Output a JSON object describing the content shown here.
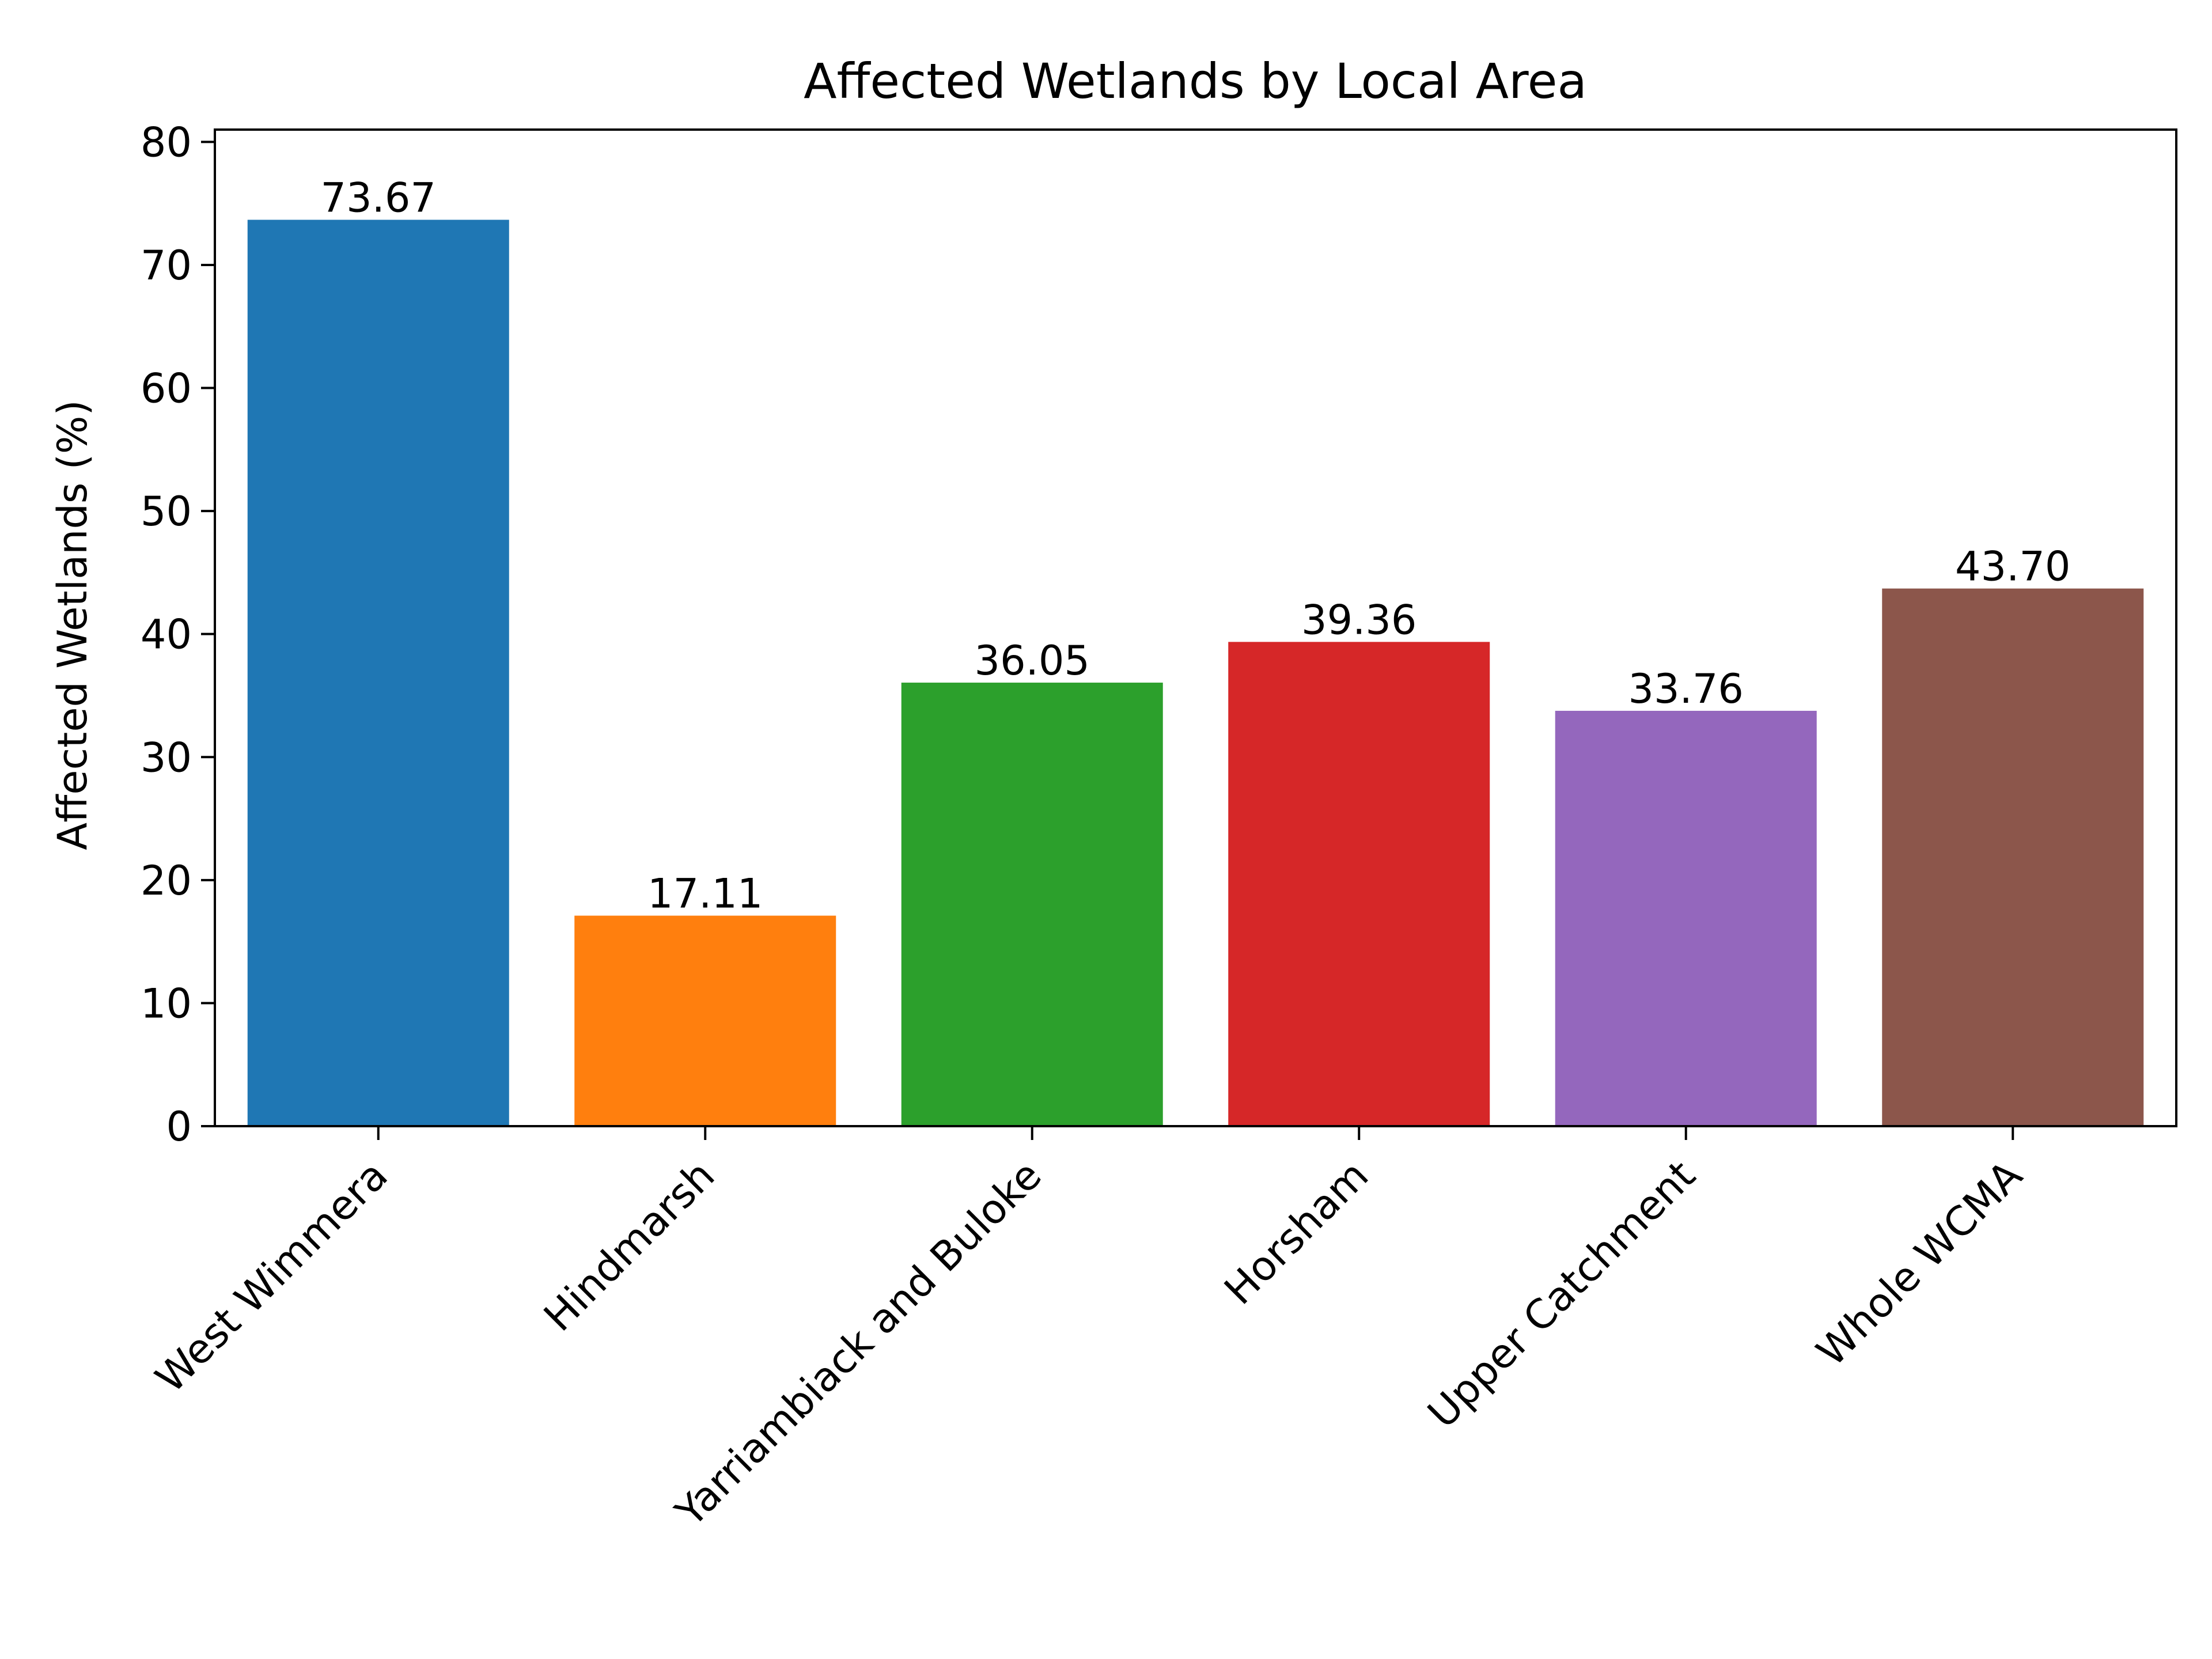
{
  "chart_data": {
    "type": "bar",
    "title": "Affected Wetlands by Local Area",
    "xlabel": "",
    "ylabel": "Affected Wetlands (%)",
    "categories": [
      "West Wimmera",
      "Hindmarsh",
      "Yarriambiack and Buloke",
      "Horsham",
      "Upper Catchment",
      "Whole WCMA"
    ],
    "values": [
      73.67,
      17.11,
      36.05,
      39.36,
      33.76,
      43.7
    ],
    "value_labels": [
      "73.67",
      "17.11",
      "36.05",
      "39.36",
      "33.76",
      "43.70"
    ],
    "colors": [
      "#1f77b4",
      "#ff7f0e",
      "#2ca02c",
      "#d62728",
      "#9467bd",
      "#8c564b"
    ],
    "ylim": [
      0,
      81
    ],
    "yticks": [
      0,
      10,
      20,
      30,
      40,
      50,
      60,
      70,
      80
    ],
    "grid": false,
    "legend": "none"
  }
}
